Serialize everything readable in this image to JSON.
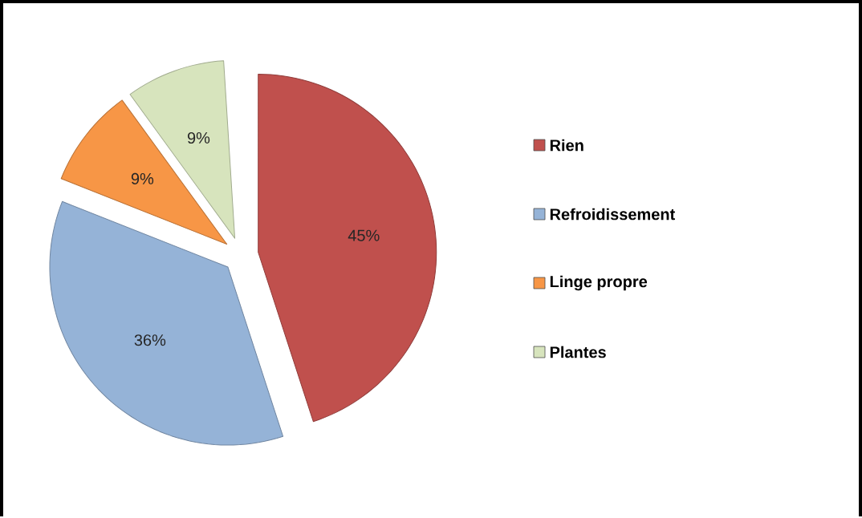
{
  "chart_data": {
    "type": "pie",
    "categories": [
      "Rien",
      "Refroidissement",
      "Linge propre",
      "Plantes"
    ],
    "values": [
      45,
      36,
      9,
      9
    ],
    "value_labels": [
      "45%",
      "36%",
      "9%",
      "9%"
    ],
    "colors": [
      "#c0504d",
      "#95b3d7",
      "#f79646",
      "#d7e4bd"
    ],
    "legend": "right"
  }
}
